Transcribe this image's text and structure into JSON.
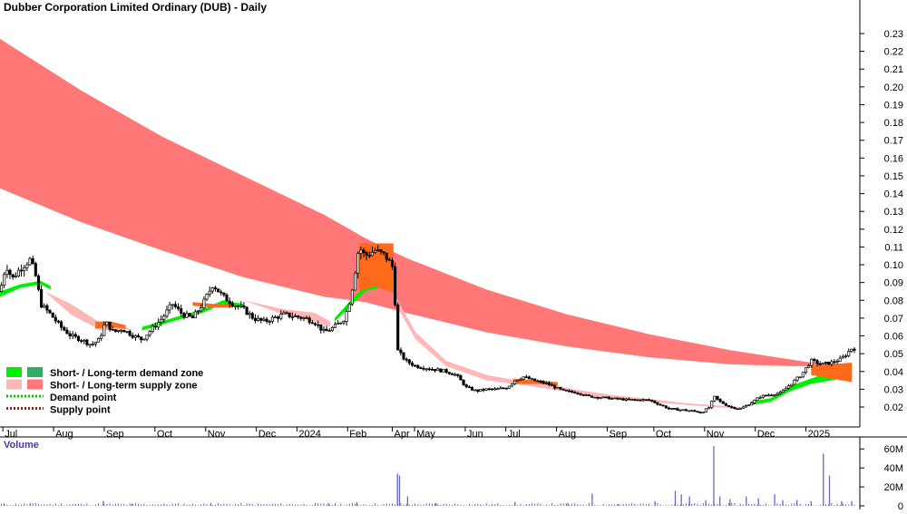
{
  "chart_data": {
    "type": "candlestick",
    "title": "Dubber Corporation Limited Ordinary (DUB) - Daily",
    "price_axis": {
      "min": 0.01,
      "max": 0.235,
      "ticks": [
        "0.23",
        "0.22",
        "0.21",
        "0.20",
        "0.19",
        "0.18",
        "0.17",
        "0.16",
        "0.15",
        "0.14",
        "0.13",
        "0.12",
        "0.11",
        "0.10",
        "0.09",
        "0.08",
        "0.07",
        "0.06",
        "0.05",
        "0.04",
        "0.03",
        "0.02"
      ]
    },
    "volume_axis": {
      "label": "Volume",
      "max": 65,
      "ticks": [
        {
          "label": "60M",
          "value": 60
        },
        {
          "label": "40M",
          "value": 40
        },
        {
          "label": "20M",
          "value": 20
        },
        {
          "label": "0",
          "value": 0
        }
      ]
    },
    "x_labels": [
      {
        "label": "Jul",
        "t": 0.5
      },
      {
        "label": "Aug",
        "t": 3.0
      },
      {
        "label": "Sep",
        "t": 5.5
      },
      {
        "label": "Oct",
        "t": 8.0
      },
      {
        "label": "Nov",
        "t": 10.5
      },
      {
        "label": "Dec",
        "t": 13.0
      },
      {
        "label": "2024",
        "t": 15.0
      },
      {
        "label": "Feb",
        "t": 17.5
      },
      {
        "label": "Apr",
        "t": 19.7
      },
      {
        "label": "May",
        "t": 20.8
      },
      {
        "label": "Jun",
        "t": 23.3
      },
      {
        "label": "Jul",
        "t": 25.3
      },
      {
        "label": "Aug",
        "t": 27.8
      },
      {
        "label": "Sep",
        "t": 30.3
      },
      {
        "label": "Oct",
        "t": 32.6
      },
      {
        "label": "Nov",
        "t": 35.1
      },
      {
        "label": "Dec",
        "t": 37.6
      },
      {
        "label": "2025",
        "t": 40.1
      }
    ],
    "t_range": [
      0,
      42.4
    ],
    "legend": [
      {
        "text": "Short- / Long-term demand zone",
        "colors": [
          "#00ee00",
          "#33aa66"
        ],
        "type": "box"
      },
      {
        "text": "Short- / Long-term supply zone",
        "colors": [
          "#ffb6b6",
          "#ff7777"
        ],
        "type": "box"
      },
      {
        "text": "Demand point",
        "colors": [
          "#00cc00"
        ],
        "type": "dots"
      },
      {
        "text": "Supply point",
        "colors": [
          "#dd0000"
        ],
        "type": "dots"
      }
    ],
    "colors": {
      "long_supply": "#ff7777",
      "short_supply": "#ffb6b6",
      "demand": "#00ee00",
      "overlap": "#ff6a1a",
      "candle": "#000000",
      "volume": "#6666cc"
    },
    "long_supply_zone": {
      "upper": [
        [
          0,
          0.227
        ],
        [
          4,
          0.198
        ],
        [
          8,
          0.172
        ],
        [
          12,
          0.15
        ],
        [
          16,
          0.128
        ],
        [
          18,
          0.115
        ],
        [
          20,
          0.104
        ],
        [
          24,
          0.086
        ],
        [
          28,
          0.072
        ],
        [
          32,
          0.061
        ],
        [
          36,
          0.052
        ],
        [
          40,
          0.045
        ],
        [
          42,
          0.044
        ]
      ],
      "lower": [
        [
          0,
          0.143
        ],
        [
          4,
          0.124
        ],
        [
          8,
          0.108
        ],
        [
          12,
          0.093
        ],
        [
          16,
          0.082
        ],
        [
          18,
          0.079
        ],
        [
          20,
          0.073
        ],
        [
          24,
          0.062
        ],
        [
          28,
          0.054
        ],
        [
          32,
          0.048
        ],
        [
          36,
          0.044
        ],
        [
          39,
          0.043
        ],
        [
          42,
          0.043
        ]
      ]
    },
    "short_supply_zone": [
      {
        "upper": [
          [
            2.2,
            0.085
          ],
          [
            3.5,
            0.078
          ],
          [
            5.0,
            0.067
          ],
          [
            6.5,
            0.064
          ]
        ],
        "lower": [
          [
            2.2,
            0.085
          ],
          [
            3.5,
            0.072
          ],
          [
            5.0,
            0.063
          ],
          [
            6.5,
            0.064
          ]
        ]
      },
      {
        "upper": [
          [
            12.0,
            0.08
          ],
          [
            14.0,
            0.075
          ],
          [
            15.5,
            0.073
          ],
          [
            16.3,
            0.068
          ]
        ],
        "lower": [
          [
            12.0,
            0.08
          ],
          [
            14.0,
            0.072
          ],
          [
            15.5,
            0.068
          ],
          [
            16.3,
            0.065
          ]
        ]
      },
      {
        "upper": [
          [
            19.4,
            0.084
          ],
          [
            20.5,
            0.062
          ],
          [
            22.0,
            0.046
          ],
          [
            24.0,
            0.038
          ],
          [
            26.0,
            0.034
          ],
          [
            30.0,
            0.027
          ],
          [
            34.0,
            0.022
          ],
          [
            36.5,
            0.02
          ]
        ],
        "lower": [
          [
            19.4,
            0.08
          ],
          [
            20.5,
            0.058
          ],
          [
            22.0,
            0.043
          ],
          [
            24.0,
            0.035
          ],
          [
            26.0,
            0.032
          ],
          [
            30.0,
            0.025
          ],
          [
            34.0,
            0.021
          ],
          [
            36.5,
            0.019
          ]
        ]
      }
    ],
    "demand_zone": [
      {
        "upper": [
          [
            0,
            0.085
          ],
          [
            1,
            0.089
          ],
          [
            2,
            0.091
          ],
          [
            2.5,
            0.088
          ]
        ],
        "lower": [
          [
            0,
            0.082
          ],
          [
            1,
            0.087
          ],
          [
            2,
            0.089
          ],
          [
            2.5,
            0.086
          ]
        ]
      },
      {
        "upper": [
          [
            7,
            0.065
          ],
          [
            8.5,
            0.07
          ],
          [
            10,
            0.075
          ],
          [
            11,
            0.08
          ],
          [
            12,
            0.078
          ]
        ],
        "lower": [
          [
            7,
            0.063
          ],
          [
            8.5,
            0.068
          ],
          [
            10,
            0.073
          ],
          [
            11,
            0.078
          ],
          [
            12,
            0.076
          ]
        ]
      },
      {
        "upper": [
          [
            16.5,
            0.07
          ],
          [
            17.3,
            0.08
          ],
          [
            18,
            0.088
          ],
          [
            19,
            0.094
          ],
          [
            19.4,
            0.095
          ]
        ],
        "lower": [
          [
            16.5,
            0.068
          ],
          [
            17.3,
            0.077
          ],
          [
            18,
            0.085
          ],
          [
            19,
            0.088
          ],
          [
            19.4,
            0.088
          ]
        ]
      },
      {
        "upper": [
          [
            37,
            0.023
          ],
          [
            38,
            0.025
          ],
          [
            39,
            0.032
          ],
          [
            40,
            0.036
          ],
          [
            41,
            0.04
          ],
          [
            42,
            0.044
          ]
        ],
        "lower": [
          [
            37,
            0.021
          ],
          [
            38,
            0.023
          ],
          [
            39,
            0.029
          ],
          [
            40,
            0.033
          ],
          [
            41,
            0.035
          ],
          [
            42,
            0.037
          ]
        ]
      }
    ],
    "overlap_zone": [
      {
        "upper": [
          [
            4.7,
            0.068
          ],
          [
            5.5,
            0.068
          ],
          [
            6.2,
            0.066
          ]
        ],
        "lower": [
          [
            4.7,
            0.064
          ],
          [
            5.5,
            0.065
          ],
          [
            6.2,
            0.064
          ]
        ]
      },
      {
        "upper": [
          [
            9.5,
            0.079
          ],
          [
            10.5,
            0.078
          ],
          [
            11.5,
            0.078
          ]
        ],
        "lower": [
          [
            9.5,
            0.077
          ],
          [
            10.5,
            0.076
          ],
          [
            11.5,
            0.076
          ]
        ]
      },
      {
        "upper": [
          [
            17.7,
            0.112
          ],
          [
            19.4,
            0.112
          ]
        ],
        "lower": [
          [
            17.7,
            0.085
          ],
          [
            18.5,
            0.088
          ],
          [
            19.4,
            0.084
          ]
        ]
      },
      {
        "upper": [
          [
            25.3,
            0.036
          ],
          [
            26.5,
            0.035
          ],
          [
            27.5,
            0.034
          ]
        ],
        "lower": [
          [
            25.3,
            0.033
          ],
          [
            26.5,
            0.033
          ],
          [
            27.5,
            0.032
          ]
        ]
      },
      {
        "upper": [
          [
            40.0,
            0.043
          ],
          [
            41.0,
            0.044
          ],
          [
            42.0,
            0.045
          ]
        ],
        "lower": [
          [
            40.0,
            0.038
          ],
          [
            41.0,
            0.036
          ],
          [
            42.0,
            0.034
          ]
        ]
      }
    ],
    "price_path": [
      [
        0,
        0.085
      ],
      [
        0.3,
        0.1
      ],
      [
        0.6,
        0.092
      ],
      [
        1,
        0.098
      ],
      [
        1.5,
        0.103
      ],
      [
        1.8,
        0.092
      ],
      [
        2.0,
        0.078
      ],
      [
        2.5,
        0.072
      ],
      [
        3.0,
        0.065
      ],
      [
        3.5,
        0.06
      ],
      [
        4.0,
        0.058
      ],
      [
        4.5,
        0.055
      ],
      [
        4.9,
        0.058
      ],
      [
        5.2,
        0.068
      ],
      [
        5.6,
        0.062
      ],
      [
        6.0,
        0.064
      ],
      [
        6.6,
        0.06
      ],
      [
        7.0,
        0.058
      ],
      [
        7.5,
        0.064
      ],
      [
        8.0,
        0.07
      ],
      [
        8.5,
        0.078
      ],
      [
        9.0,
        0.072
      ],
      [
        9.5,
        0.07
      ],
      [
        10.0,
        0.078
      ],
      [
        10.5,
        0.089
      ],
      [
        11.0,
        0.082
      ],
      [
        11.5,
        0.078
      ],
      [
        12.0,
        0.075
      ],
      [
        12.5,
        0.07
      ],
      [
        13.0,
        0.068
      ],
      [
        13.5,
        0.07
      ],
      [
        14.0,
        0.072
      ],
      [
        14.5,
        0.071
      ],
      [
        15.0,
        0.07
      ],
      [
        15.5,
        0.068
      ],
      [
        16.0,
        0.062
      ],
      [
        16.5,
        0.065
      ],
      [
        17.0,
        0.07
      ],
      [
        17.3,
        0.082
      ],
      [
        17.7,
        0.11
      ],
      [
        18.0,
        0.105
      ],
      [
        18.5,
        0.108
      ],
      [
        19.0,
        0.105
      ],
      [
        19.4,
        0.098
      ],
      [
        19.6,
        0.052
      ],
      [
        20.0,
        0.046
      ],
      [
        20.5,
        0.043
      ],
      [
        21.0,
        0.042
      ],
      [
        21.5,
        0.041
      ],
      [
        22.0,
        0.04
      ],
      [
        22.5,
        0.038
      ],
      [
        23.0,
        0.031
      ],
      [
        23.5,
        0.029
      ],
      [
        24.0,
        0.03
      ],
      [
        24.5,
        0.03
      ],
      [
        25.0,
        0.031
      ],
      [
        25.4,
        0.035
      ],
      [
        25.8,
        0.037
      ],
      [
        26.3,
        0.035
      ],
      [
        27.0,
        0.033
      ],
      [
        27.8,
        0.029
      ],
      [
        28.5,
        0.028
      ],
      [
        29.0,
        0.026
      ],
      [
        30.0,
        0.025
      ],
      [
        31.0,
        0.024
      ],
      [
        32.0,
        0.024
      ],
      [
        32.6,
        0.021
      ],
      [
        33.0,
        0.019
      ],
      [
        34.0,
        0.018
      ],
      [
        34.6,
        0.017
      ],
      [
        35.0,
        0.02
      ],
      [
        35.2,
        0.026
      ],
      [
        35.5,
        0.023
      ],
      [
        36.0,
        0.02
      ],
      [
        36.5,
        0.019
      ],
      [
        37.0,
        0.022
      ],
      [
        37.5,
        0.026
      ],
      [
        38.0,
        0.027
      ],
      [
        38.5,
        0.028
      ],
      [
        39.0,
        0.033
      ],
      [
        39.5,
        0.038
      ],
      [
        40.0,
        0.046
      ],
      [
        40.5,
        0.044
      ],
      [
        41.0,
        0.045
      ],
      [
        41.5,
        0.047
      ],
      [
        42.0,
        0.053
      ]
    ],
    "volume_spikes": [
      {
        "t": 0.2,
        "v": 2
      },
      {
        "t": 1.5,
        "v": 2.5
      },
      {
        "t": 5.1,
        "v": 5
      },
      {
        "t": 6.5,
        "v": 2
      },
      {
        "t": 10.4,
        "v": 3
      },
      {
        "t": 16.2,
        "v": 3
      },
      {
        "t": 17.6,
        "v": 4
      },
      {
        "t": 19.6,
        "v": 34
      },
      {
        "t": 19.7,
        "v": 32
      },
      {
        "t": 20.1,
        "v": 10
      },
      {
        "t": 21.5,
        "v": 3
      },
      {
        "t": 25.4,
        "v": 4
      },
      {
        "t": 28.0,
        "v": 3
      },
      {
        "t": 29.2,
        "v": 13
      },
      {
        "t": 30.5,
        "v": 2
      },
      {
        "t": 32.3,
        "v": 5
      },
      {
        "t": 33.3,
        "v": 16
      },
      {
        "t": 33.6,
        "v": 12
      },
      {
        "t": 34.0,
        "v": 10
      },
      {
        "t": 34.8,
        "v": 6
      },
      {
        "t": 35.2,
        "v": 63
      },
      {
        "t": 35.5,
        "v": 10
      },
      {
        "t": 36.0,
        "v": 7
      },
      {
        "t": 36.8,
        "v": 10
      },
      {
        "t": 37.4,
        "v": 8
      },
      {
        "t": 38.2,
        "v": 12
      },
      {
        "t": 38.6,
        "v": 6
      },
      {
        "t": 39.3,
        "v": 6
      },
      {
        "t": 40.0,
        "v": 5
      },
      {
        "t": 40.6,
        "v": 55
      },
      {
        "t": 40.9,
        "v": 32
      },
      {
        "t": 41.5,
        "v": 5
      },
      {
        "t": 42.0,
        "v": 5
      }
    ]
  }
}
